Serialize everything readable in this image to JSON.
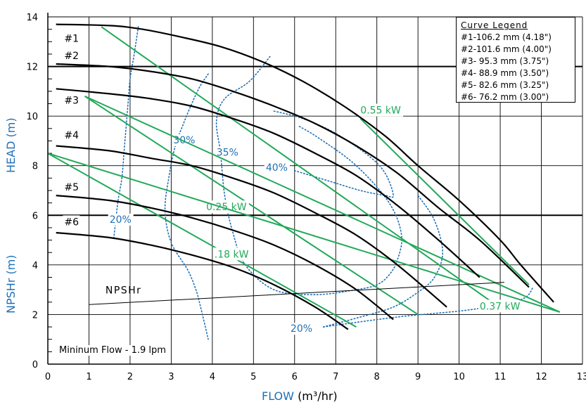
{
  "chart_data": {
    "type": "line",
    "xlabel_main": "FLOW",
    "xlabel_unit": "(m³/hr)",
    "ylabel_head": "HEAD (m)",
    "ylabel_npshr": "NPSHr (m)",
    "xlim": [
      0,
      13
    ],
    "ylim": [
      0,
      14
    ],
    "xticks": [
      "0",
      "1",
      "2",
      "3",
      "4",
      "5",
      "6",
      "7",
      "8",
      "9",
      "10",
      "11",
      "12",
      "13"
    ],
    "yticks": [
      "0",
      "2",
      "4",
      "6",
      "8",
      "10",
      "12",
      "14"
    ],
    "legend": {
      "title": "Curve Legend",
      "entries": [
        "#1-106.2 mm (4.18\")",
        "#2-101.6 mm (4.00\")",
        "#3- 95.3 mm (3.75\")",
        "#4- 88.9 mm (3.50\")",
        "#5- 82.6 mm (3.25\")",
        "#6- 76.2 mm (3.00\")"
      ]
    },
    "min_flow_label": "Mininum Flow - 1.9 lpm",
    "series": [
      {
        "name": "#1",
        "x": [
          0.2,
          1.5,
          2.3,
          3.2,
          4.2,
          5.2,
          6.2,
          7.2,
          8.2,
          9.0,
          10.0,
          11.0,
          11.5,
          12.3
        ],
        "y": [
          13.7,
          13.65,
          13.5,
          13.2,
          12.8,
          12.2,
          11.4,
          10.4,
          9.2,
          8.0,
          6.6,
          5.0,
          4.0,
          2.5
        ]
      },
      {
        "name": "#2",
        "x": [
          0.2,
          1.5,
          2.5,
          3.5,
          4.5,
          5.5,
          6.5,
          7.5,
          8.5,
          9.5,
          10.5,
          11.7
        ],
        "y": [
          12.1,
          12.0,
          11.8,
          11.5,
          11.0,
          10.4,
          9.7,
          8.8,
          7.7,
          6.3,
          5.0,
          3.1
        ]
      },
      {
        "name": "#3",
        "x": [
          0.2,
          1.5,
          2.5,
          3.5,
          4.5,
          5.5,
          6.5,
          7.5,
          8.5,
          9.5,
          10.5
        ],
        "y": [
          11.1,
          10.9,
          10.7,
          10.4,
          9.9,
          9.3,
          8.5,
          7.6,
          6.4,
          5.0,
          3.5
        ]
      },
      {
        "name": "#4",
        "x": [
          0.2,
          1.5,
          2.5,
          3.5,
          4.5,
          5.5,
          6.5,
          7.5,
          8.5,
          9.7
        ],
        "y": [
          8.8,
          8.6,
          8.3,
          8.0,
          7.5,
          6.9,
          6.1,
          5.2,
          4.0,
          2.3
        ]
      },
      {
        "name": "#5",
        "x": [
          0.2,
          1.5,
          2.5,
          3.5,
          4.5,
          5.5,
          6.5,
          7.5,
          8.4
        ],
        "y": [
          6.8,
          6.6,
          6.3,
          5.9,
          5.4,
          4.8,
          4.0,
          3.0,
          1.8
        ]
      },
      {
        "name": "#6",
        "x": [
          0.2,
          1.5,
          2.5,
          3.5,
          4.5,
          5.5,
          6.5,
          7.3
        ],
        "y": [
          5.3,
          5.1,
          4.8,
          4.4,
          3.9,
          3.2,
          2.3,
          1.4
        ]
      }
    ],
    "curve_labels": [
      {
        "text": "#1",
        "x": 0.4,
        "y": 13.0
      },
      {
        "text": "#2",
        "x": 0.4,
        "y": 12.3
      },
      {
        "text": "#3",
        "x": 0.4,
        "y": 10.5
      },
      {
        "text": "#4",
        "x": 0.4,
        "y": 9.1
      },
      {
        "text": "#5",
        "x": 0.4,
        "y": 7.0
      },
      {
        "text": "#6",
        "x": 0.4,
        "y": 5.6
      }
    ],
    "power_lines": [
      {
        "name": "0.55 kW",
        "x": [
          7.6,
          11.7
        ],
        "y": [
          9.9,
          3.2
        ],
        "label_x": 7.6,
        "label_y": 10.1
      },
      {
        "name": "0.37 kW",
        "x": [
          1.3,
          10.8
        ],
        "y": [
          13.6,
          2.5
        ],
        "label_x": 10.5,
        "label_y": 2.2
      },
      {
        "name": "0.25 kW",
        "x": [
          0.9,
          9.0
        ],
        "y": [
          10.8,
          2.0
        ],
        "label_x": 3.85,
        "label_y": 6.2
      },
      {
        "name": ".18 kW",
        "x": [
          0.0,
          7.5
        ],
        "y": [
          8.5,
          1.5
        ],
        "label_x": 4.05,
        "label_y": 4.3
      },
      {
        "name": "",
        "x": [
          0.0,
          12.45
        ],
        "y": [
          8.5,
          2.1
        ]
      },
      {
        "name": "",
        "x": [
          0.9,
          12.45
        ],
        "y": [
          10.8,
          2.1
        ]
      }
    ],
    "efficiency_contours": [
      {
        "name": "20%",
        "label_x": 1.5,
        "label_y": 5.7,
        "x": [
          2.2,
          2.1,
          2.0,
          1.95,
          1.9,
          1.85,
          1.8,
          1.7,
          1.6
        ],
        "y": [
          13.6,
          12.5,
          11.5,
          10.5,
          9.5,
          8.5,
          7.5,
          6.5,
          5.0
        ]
      },
      {
        "name": "30%",
        "label_x": 3.05,
        "label_y": 8.9,
        "x": [
          3.9,
          3.7,
          3.5,
          3.3,
          3.1,
          2.95,
          2.85,
          3.0,
          3.4,
          3.6,
          3.7,
          3.9
        ],
        "y": [
          11.7,
          11.2,
          10.5,
          9.7,
          8.8,
          7.6,
          6.2,
          4.9,
          3.8,
          3.0,
          2.4,
          1.0
        ]
      },
      {
        "name": "35%",
        "label_x": 4.1,
        "label_y": 8.4,
        "x": [
          5.4,
          4.9,
          4.3,
          4.1,
          4.2,
          4.3,
          4.5,
          4.8,
          5.5,
          6.5,
          7.5,
          8.0,
          8.3,
          8.5,
          8.6,
          8.3,
          7.5,
          6.6,
          6.1
        ],
        "y": [
          12.4,
          11.4,
          10.7,
          9.8,
          8.5,
          6.8,
          5.3,
          4.0,
          3.0,
          2.8,
          3.0,
          3.2,
          3.6,
          4.2,
          5.2,
          6.5,
          8.0,
          9.1,
          9.6
        ]
      },
      {
        "name": "40%",
        "label_x": 5.3,
        "label_y": 7.8,
        "x": [
          5.5,
          6.2,
          7.0,
          7.8,
          8.2,
          8.4,
          8.2,
          7.6,
          6.8,
          6.0
        ],
        "y": [
          10.2,
          9.9,
          9.3,
          8.4,
          7.7,
          6.8,
          6.8,
          7.0,
          7.4,
          7.8
        ]
      },
      {
        "name": "20%",
        "label_x": 5.9,
        "label_y": 1.3,
        "x": [
          6.7,
          7.6,
          8.4,
          9.0,
          9.4,
          9.6,
          9.4,
          9.0
        ],
        "y": [
          1.5,
          1.9,
          2.3,
          2.9,
          3.5,
          4.5,
          5.8,
          6.8
        ]
      },
      {
        "name": "",
        "x": [
          6.7,
          8.5,
          10.3,
          11.5,
          11.8
        ],
        "y": [
          1.5,
          1.9,
          2.2,
          2.6,
          3.1
        ]
      }
    ],
    "npshr": {
      "label": "NPSHr",
      "x": [
        1.0,
        11.1
      ],
      "y": [
        2.4,
        3.3
      ],
      "label_x": 1.4,
      "label_y": 2.85
    },
    "hlines": [
      6,
      12
    ],
    "grid": true,
    "colors": {
      "pump": "#000000",
      "power": "#22a95a",
      "efficiency": "#1f6fb4",
      "axis_label": "#1f6fb4"
    }
  }
}
